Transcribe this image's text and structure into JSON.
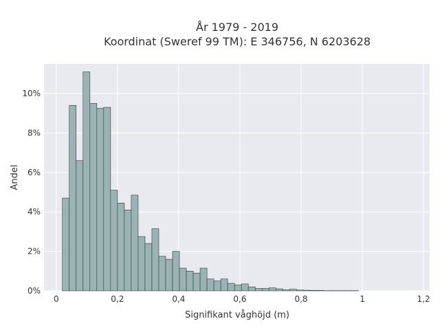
{
  "chart_data": {
    "type": "bar",
    "title_line1": "År 1979 - 2019",
    "title_line2": "Koordinat (Sweref 99 TM): E 346756, N 6203628",
    "xlabel": "Signifikant våghöjd (m)",
    "ylabel": "Andel",
    "xlim": [
      -0.04,
      1.22
    ],
    "ylim": [
      0,
      11.5
    ],
    "x_ticks": [
      {
        "value": 0,
        "label": "0"
      },
      {
        "value": 0.2,
        "label": "0,2"
      },
      {
        "value": 0.4,
        "label": "0,4"
      },
      {
        "value": 0.6,
        "label": "0,6"
      },
      {
        "value": 0.8,
        "label": "0,8"
      },
      {
        "value": 1.0,
        "label": "1"
      },
      {
        "value": 1.2,
        "label": "1,2"
      }
    ],
    "y_ticks": [
      {
        "value": 0,
        "label": "0%"
      },
      {
        "value": 2,
        "label": "2%"
      },
      {
        "value": 4,
        "label": "4%"
      },
      {
        "value": 6,
        "label": "6%"
      },
      {
        "value": 8,
        "label": "8%"
      },
      {
        "value": 10,
        "label": "10%"
      }
    ],
    "bin_start": 0.02,
    "bin_width": 0.0225,
    "values": [
      4.7,
      9.4,
      6.6,
      11.1,
      9.5,
      9.25,
      9.3,
      5.1,
      4.45,
      4.1,
      4.85,
      2.75,
      2.4,
      3.15,
      1.75,
      1.6,
      2.0,
      1.15,
      1.0,
      0.9,
      1.15,
      0.6,
      0.5,
      0.6,
      0.38,
      0.3,
      0.35,
      0.2,
      0.12,
      0.12,
      0.15,
      0.1,
      0.05,
      0.08,
      0.04,
      0.03,
      0.02,
      0.02,
      0.01,
      0.01,
      0.01,
      0.01,
      0.01
    ],
    "grid": true,
    "colors": {
      "bar_fill": "#9bb3b3",
      "bar_stroke": "#2d3a3a",
      "plot_bg": "#e9e9f0",
      "grid": "#ffffff",
      "text": "#333333"
    }
  }
}
